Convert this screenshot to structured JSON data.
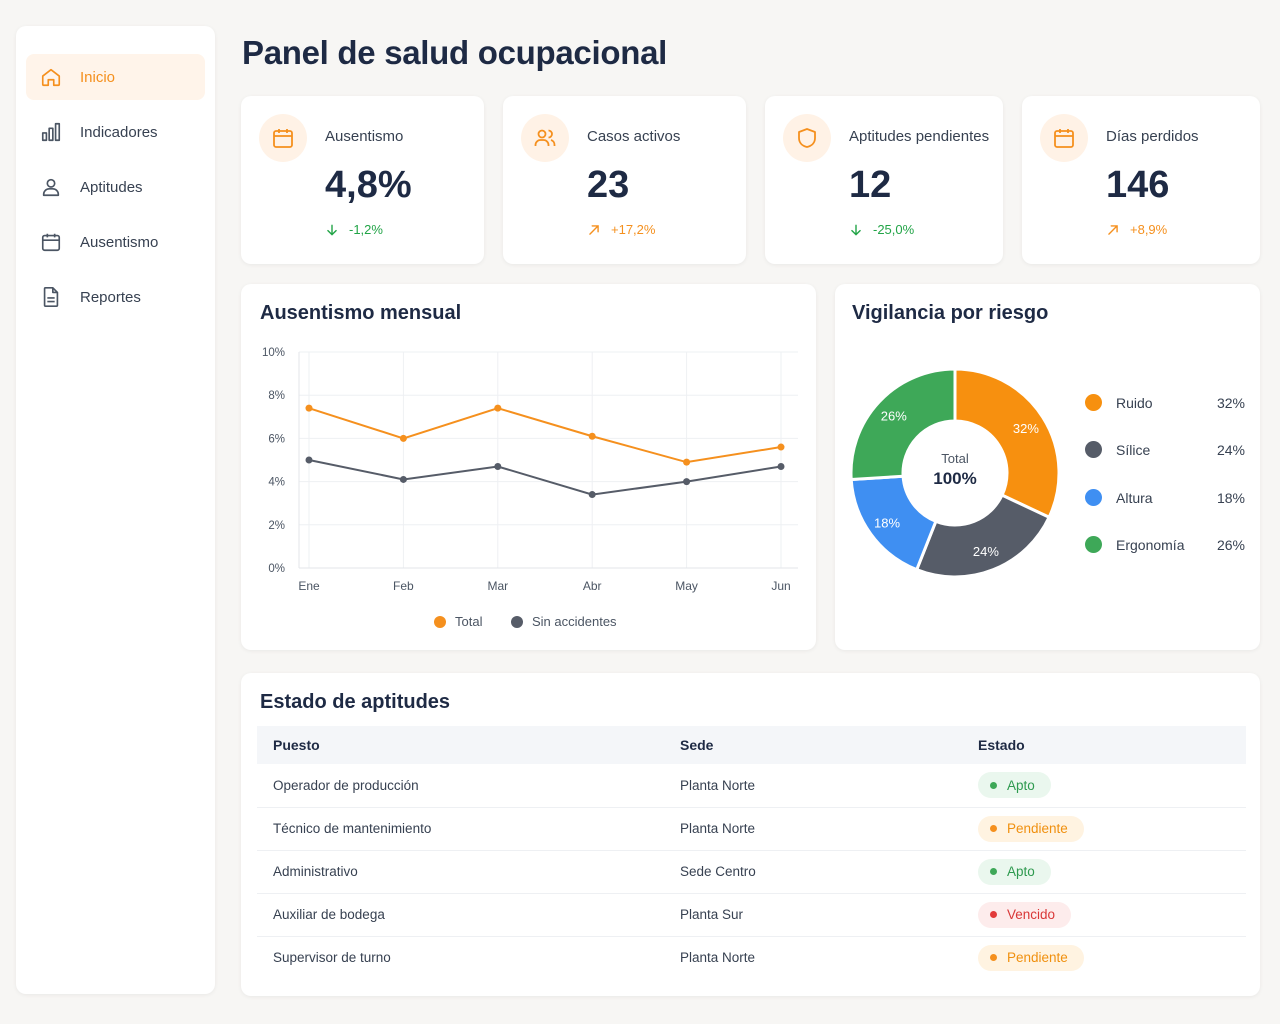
{
  "sidebar": {
    "items": [
      {
        "label": "Inicio",
        "icon": "home-icon",
        "active": true
      },
      {
        "label": "Indicadores",
        "icon": "bar-chart-icon"
      },
      {
        "label": "Aptitudes",
        "icon": "user-icon"
      },
      {
        "label": "Ausentismo",
        "icon": "calendar-icon"
      },
      {
        "label": "Reportes",
        "icon": "document-icon"
      }
    ]
  },
  "header": {
    "title": "Panel de salud ocupacional"
  },
  "kpis": [
    {
      "label": "Ausentismo",
      "value": "4,8%",
      "delta": "-1,2%",
      "trend": "down",
      "icon": "calendar-icon"
    },
    {
      "label": "Casos activos",
      "value": "23",
      "delta": "+17,2%",
      "trend": "up",
      "icon": "users-icon"
    },
    {
      "label": "Aptitudes pendientes",
      "value": "12",
      "delta": "-25,0%",
      "trend": "down",
      "icon": "shield-icon"
    },
    {
      "label": "Días perdidos",
      "value": "146",
      "delta": "+8,9%",
      "trend": "up",
      "icon": "calendar-icon"
    }
  ],
  "line_card": {
    "title": "Ausentismo mensual"
  },
  "pie_card": {
    "title": "Vigilancia por riesgo",
    "center_label": "Total",
    "center_value": "100%"
  },
  "chart_data": [
    {
      "type": "line",
      "title": "Ausentismo mensual",
      "categories": [
        "Ene",
        "Feb",
        "Mar",
        "Abr",
        "May",
        "Jun"
      ],
      "ylim": [
        0,
        10
      ],
      "yticks": [
        "0%",
        "2%",
        "4%",
        "6%",
        "8%",
        "10%"
      ],
      "grid": true,
      "legend": "bottom",
      "series": [
        {
          "name": "Total",
          "color": "#f5901e",
          "values": [
            7.4,
            6.0,
            7.4,
            6.1,
            4.9,
            5.6
          ]
        },
        {
          "name": "Sin accidentes",
          "color": "#565c68",
          "values": [
            5.0,
            4.1,
            4.7,
            3.4,
            4.0,
            4.7
          ]
        }
      ]
    },
    {
      "type": "pie",
      "title": "Vigilancia por riesgo",
      "legend": "right",
      "slices": [
        {
          "label": "Ruido",
          "value": 32,
          "display": "32%",
          "color": "#f7900f"
        },
        {
          "label": "Sílice",
          "value": 24,
          "display": "24%",
          "color": "#565c68"
        },
        {
          "label": "Altura",
          "value": 18,
          "display": "18%",
          "color": "#3f8ff2"
        },
        {
          "label": "Ergonomía",
          "value": 26,
          "display": "26%",
          "color": "#3ea858"
        }
      ]
    }
  ],
  "table": {
    "title": "Estado de aptitudes",
    "headers": [
      "Puesto",
      "Sede",
      "Estado"
    ],
    "rows": [
      {
        "puesto": "Operador de producción",
        "sede": "Planta Norte",
        "estado": "Apto",
        "tone": "ok"
      },
      {
        "puesto": "Técnico de mantenimiento",
        "sede": "Planta Norte",
        "estado": "Pendiente",
        "tone": "pending"
      },
      {
        "puesto": "Administrativo",
        "sede": "Sede Centro",
        "estado": "Apto",
        "tone": "ok"
      },
      {
        "puesto": "Auxiliar de bodega",
        "sede": "Planta Sur",
        "estado": "Vencido",
        "tone": "expired"
      },
      {
        "puesto": "Supervisor de turno",
        "sede": "Planta Norte",
        "estado": "Pendiente",
        "tone": "pending"
      }
    ]
  },
  "colors": {
    "accent": "#f5901e",
    "ok_bg": "#eaf7ee",
    "ok_fg": "#2e9a4f",
    "ok_dot": "#3ea858",
    "pending_bg": "#fff3e1",
    "pending_fg": "#f0900f",
    "pending_dot": "#f5901e",
    "expired_bg": "#fdecec",
    "expired_fg": "#d93838",
    "expired_dot": "#e23b3b"
  }
}
